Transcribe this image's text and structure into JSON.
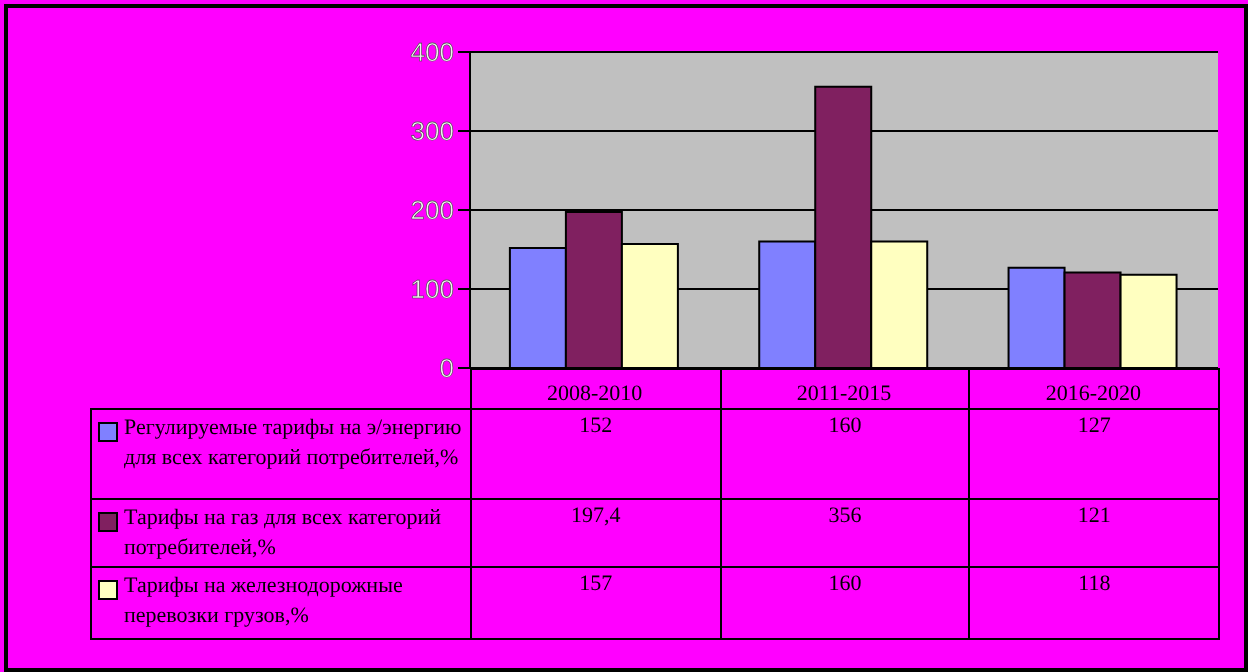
{
  "chart_data": {
    "type": "bar",
    "categories": [
      "2008-2010",
      "2011-2015",
      "2016-2020"
    ],
    "series": [
      {
        "name": "Регулируемые тарифы на э/энергию для всех категорий потребителей,%",
        "color": "#8080ff",
        "values": [
          152,
          160,
          127
        ],
        "value_labels": [
          "152",
          "160",
          "127"
        ]
      },
      {
        "name": "Тарифы на газ для всех категорий потребителей,%",
        "color": "#802060",
        "values": [
          197.4,
          356,
          121
        ],
        "value_labels": [
          "197,4",
          "356",
          "121"
        ]
      },
      {
        "name": "Тарифы на железнодорожные перевозки грузов,%",
        "color": "#ffffc0",
        "values": [
          157,
          160,
          118
        ],
        "value_labels": [
          "157",
          "160",
          "118"
        ]
      }
    ],
    "ylim": [
      0,
      400
    ],
    "yticks": [
      0,
      100,
      200,
      300,
      400
    ],
    "grid": "y",
    "legend": "bottom"
  }
}
